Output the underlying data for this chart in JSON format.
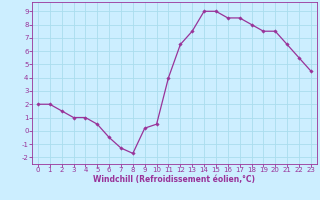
{
  "x": [
    0,
    1,
    2,
    3,
    4,
    5,
    6,
    7,
    8,
    9,
    10,
    11,
    12,
    13,
    14,
    15,
    16,
    17,
    18,
    19,
    20,
    21,
    22,
    23
  ],
  "y": [
    2.0,
    2.0,
    1.5,
    1.0,
    1.0,
    0.5,
    -0.5,
    -1.3,
    -1.7,
    0.2,
    0.5,
    4.0,
    6.5,
    7.5,
    9.0,
    9.0,
    8.5,
    8.5,
    8.0,
    7.5,
    7.5,
    6.5,
    5.5,
    4.5
  ],
  "line_color": "#993399",
  "marker": "D",
  "marker_size": 1.8,
  "line_width": 0.9,
  "bg_color": "#cceeff",
  "grid_color": "#aaddee",
  "xlabel": "Windchill (Refroidissement éolien,°C)",
  "xlabel_color": "#993399",
  "xlabel_fontsize": 5.5,
  "tick_color": "#993399",
  "tick_fontsize": 5,
  "ylim": [
    -2.5,
    9.7
  ],
  "xlim": [
    -0.5,
    23.5
  ],
  "yticks": [
    -2,
    -1,
    0,
    1,
    2,
    3,
    4,
    5,
    6,
    7,
    8,
    9
  ],
  "xticks": [
    0,
    1,
    2,
    3,
    4,
    5,
    6,
    7,
    8,
    9,
    10,
    11,
    12,
    13,
    14,
    15,
    16,
    17,
    18,
    19,
    20,
    21,
    22,
    23
  ]
}
